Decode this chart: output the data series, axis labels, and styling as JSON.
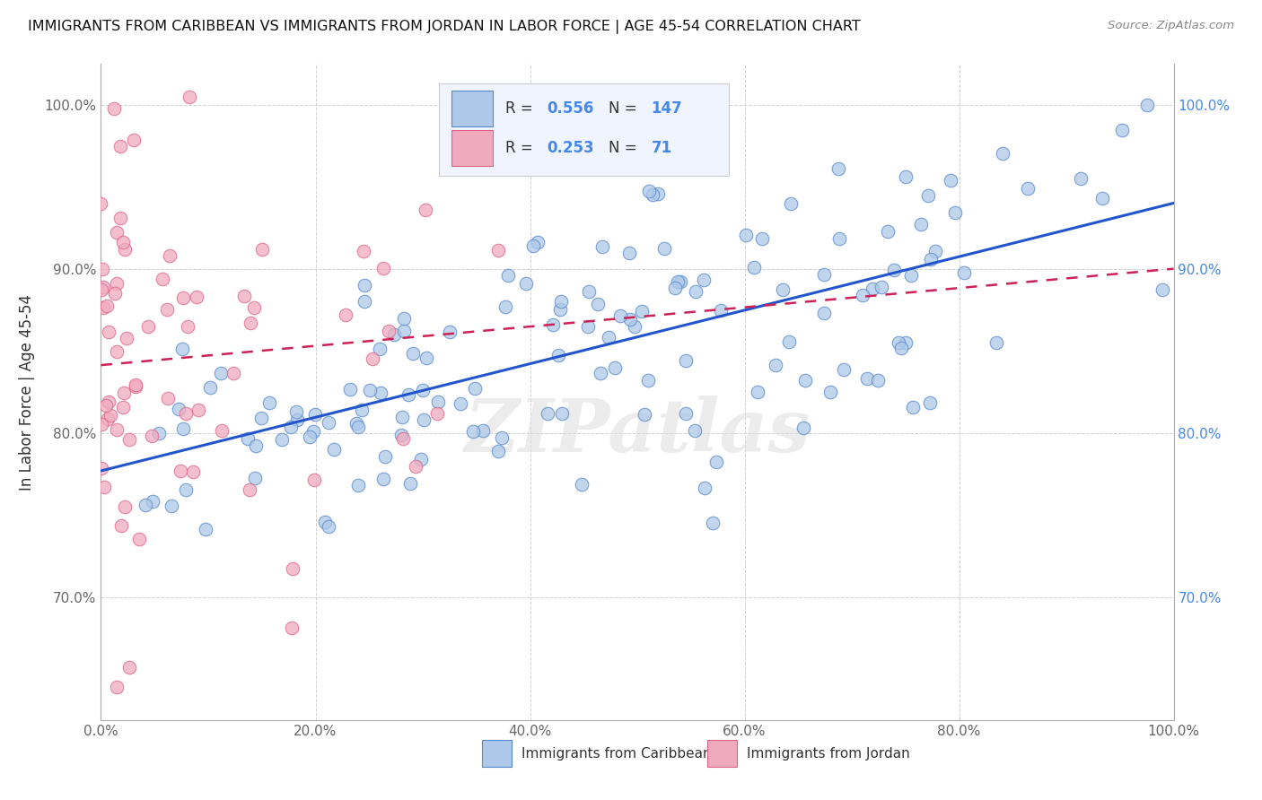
{
  "title": "IMMIGRANTS FROM CARIBBEAN VS IMMIGRANTS FROM JORDAN IN LABOR FORCE | AGE 45-54 CORRELATION CHART",
  "source": "Source: ZipAtlas.com",
  "ylabel": "In Labor Force | Age 45-54",
  "xlim": [
    0.0,
    1.0
  ],
  "ylim": [
    0.625,
    1.025
  ],
  "blue_R": "0.556",
  "blue_N": "147",
  "pink_R": "0.253",
  "pink_N": "71",
  "blue_fill": "#adc8e8",
  "blue_edge": "#5588cc",
  "pink_fill": "#f0aabf",
  "pink_edge": "#dd6688",
  "blue_line_color": "#2255cc",
  "pink_line_color": "#cc2255",
  "watermark": "ZIPatlas",
  "legend_blue_label": "Immigrants from Caribbean",
  "legend_pink_label": "Immigrants from Jordan",
  "ytick_labels": [
    "70.0%",
    "80.0%",
    "90.0%",
    "100.0%"
  ],
  "ytick_values": [
    0.7,
    0.8,
    0.9,
    1.0
  ],
  "xtick_labels": [
    "0.0%",
    "20.0%",
    "40.0%",
    "60.0%",
    "80.0%",
    "100.0%"
  ],
  "xtick_values": [
    0.0,
    0.2,
    0.4,
    0.6,
    0.8,
    1.0
  ],
  "right_ytick_color": "#4488ee"
}
